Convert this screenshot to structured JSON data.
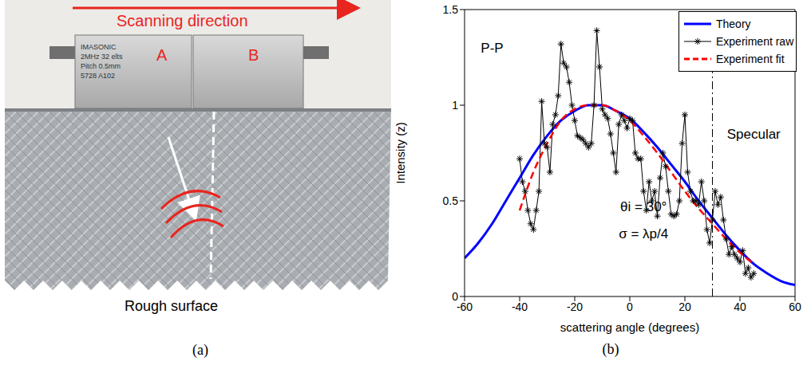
{
  "photo": {
    "panel_label": "(a)",
    "arrow_label": "Scanning direction",
    "probes": [
      {
        "label": "A",
        "print": [
          "IMASONIC",
          "2MHz 32 elts",
          "Pitch 0.5mm",
          "5728 A102"
        ]
      },
      {
        "label": "B"
      }
    ],
    "surface_label": "Rough surface"
  },
  "chart_data": {
    "panel_label": "(b)",
    "type": "line",
    "xlabel": "scattering angle (degrees)",
    "ylabel": "Intensity (z)",
    "xlim": [
      -60,
      60
    ],
    "xticks": [
      -60,
      -40,
      -20,
      0,
      20,
      40,
      60
    ],
    "ylim": [
      0,
      1.5
    ],
    "yticks": [
      0,
      0.5,
      1,
      1.5
    ],
    "grid": false,
    "legend": "upper right",
    "series": [
      {
        "name": "Theory",
        "color": "#0000ff",
        "line_style": "solid",
        "marker": "none",
        "x": [
          -60,
          -55,
          -50,
          -45,
          -40,
          -35,
          -30,
          -25,
          -20,
          -15,
          -10,
          -5,
          0,
          5,
          10,
          15,
          20,
          25,
          30,
          35,
          40,
          45,
          50,
          55,
          60
        ],
        "values": [
          0.2,
          0.28,
          0.38,
          0.5,
          0.62,
          0.74,
          0.84,
          0.92,
          0.97,
          1.0,
          1.0,
          0.97,
          0.93,
          0.86,
          0.78,
          0.69,
          0.6,
          0.5,
          0.41,
          0.32,
          0.24,
          0.17,
          0.12,
          0.08,
          0.06
        ]
      },
      {
        "name": "Experiment raw",
        "color": "#000000",
        "line_style": "solid",
        "marker": "asterisk",
        "x": [
          -40,
          -39,
          -38,
          -37,
          -36,
          -35,
          -34,
          -33,
          -32,
          -31,
          -30,
          -29,
          -28,
          -27,
          -26,
          -25,
          -24,
          -23,
          -22,
          -21,
          -20,
          -19,
          -18,
          -17,
          -16,
          -15,
          -14,
          -13,
          -12,
          -11,
          -10,
          -9,
          -8,
          -7,
          -6,
          -5,
          -4,
          -3,
          -2,
          -1,
          0,
          1,
          2,
          3,
          4,
          5,
          6,
          7,
          8,
          9,
          10,
          11,
          12,
          13,
          14,
          15,
          16,
          17,
          18,
          19,
          20,
          21,
          22,
          23,
          24,
          25,
          26,
          27,
          28,
          29,
          30,
          31,
          32,
          33,
          34,
          35,
          36,
          37,
          38,
          39,
          40,
          41,
          42,
          43,
          44,
          45
        ],
        "values": [
          0.72,
          0.6,
          0.55,
          0.45,
          0.38,
          0.35,
          0.45,
          0.55,
          1.02,
          0.8,
          0.78,
          0.65,
          0.9,
          0.95,
          1.05,
          1.32,
          1.22,
          1.2,
          1.12,
          1.0,
          0.92,
          0.84,
          0.83,
          0.82,
          0.8,
          0.78,
          0.8,
          1.0,
          1.39,
          1.2,
          0.98,
          0.95,
          0.93,
          0.85,
          0.75,
          0.65,
          0.9,
          0.95,
          0.92,
          0.88,
          0.93,
          0.92,
          0.75,
          0.72,
          0.72,
          0.55,
          0.45,
          0.6,
          0.5,
          0.55,
          0.42,
          0.62,
          0.75,
          0.68,
          0.55,
          0.43,
          0.42,
          0.43,
          0.5,
          0.8,
          0.95,
          0.65,
          0.55,
          0.5,
          0.5,
          0.48,
          0.6,
          0.5,
          0.35,
          0.28,
          0.4,
          0.55,
          0.48,
          0.52,
          0.4,
          0.3,
          0.22,
          0.26,
          0.22,
          0.2,
          0.18,
          0.24,
          0.12,
          0.15,
          0.1,
          0.12
        ]
      },
      {
        "name": "Experiment fit",
        "color": "#ff0000",
        "line_style": "dashed",
        "marker": "none",
        "x": [
          -40,
          -35,
          -30,
          -25,
          -20,
          -15,
          -10,
          -5,
          0,
          5,
          10,
          15,
          20,
          25,
          30,
          35,
          40,
          45
        ],
        "values": [
          0.45,
          0.65,
          0.8,
          0.92,
          0.98,
          1.0,
          1.0,
          0.97,
          0.92,
          0.84,
          0.75,
          0.65,
          0.55,
          0.46,
          0.38,
          0.3,
          0.23,
          0.17
        ]
      }
    ],
    "vlines": [
      {
        "x": 30
      }
    ],
    "annotations": [
      {
        "text": "P-P",
        "x": -50,
        "y": 1.3
      },
      {
        "text": "θi = 30°",
        "x": 5,
        "y": 0.47
      },
      {
        "text": "σ = λp/4",
        "x": 5,
        "y": 0.33
      },
      {
        "text": "Specular",
        "x": 45,
        "y": 0.85
      }
    ]
  }
}
